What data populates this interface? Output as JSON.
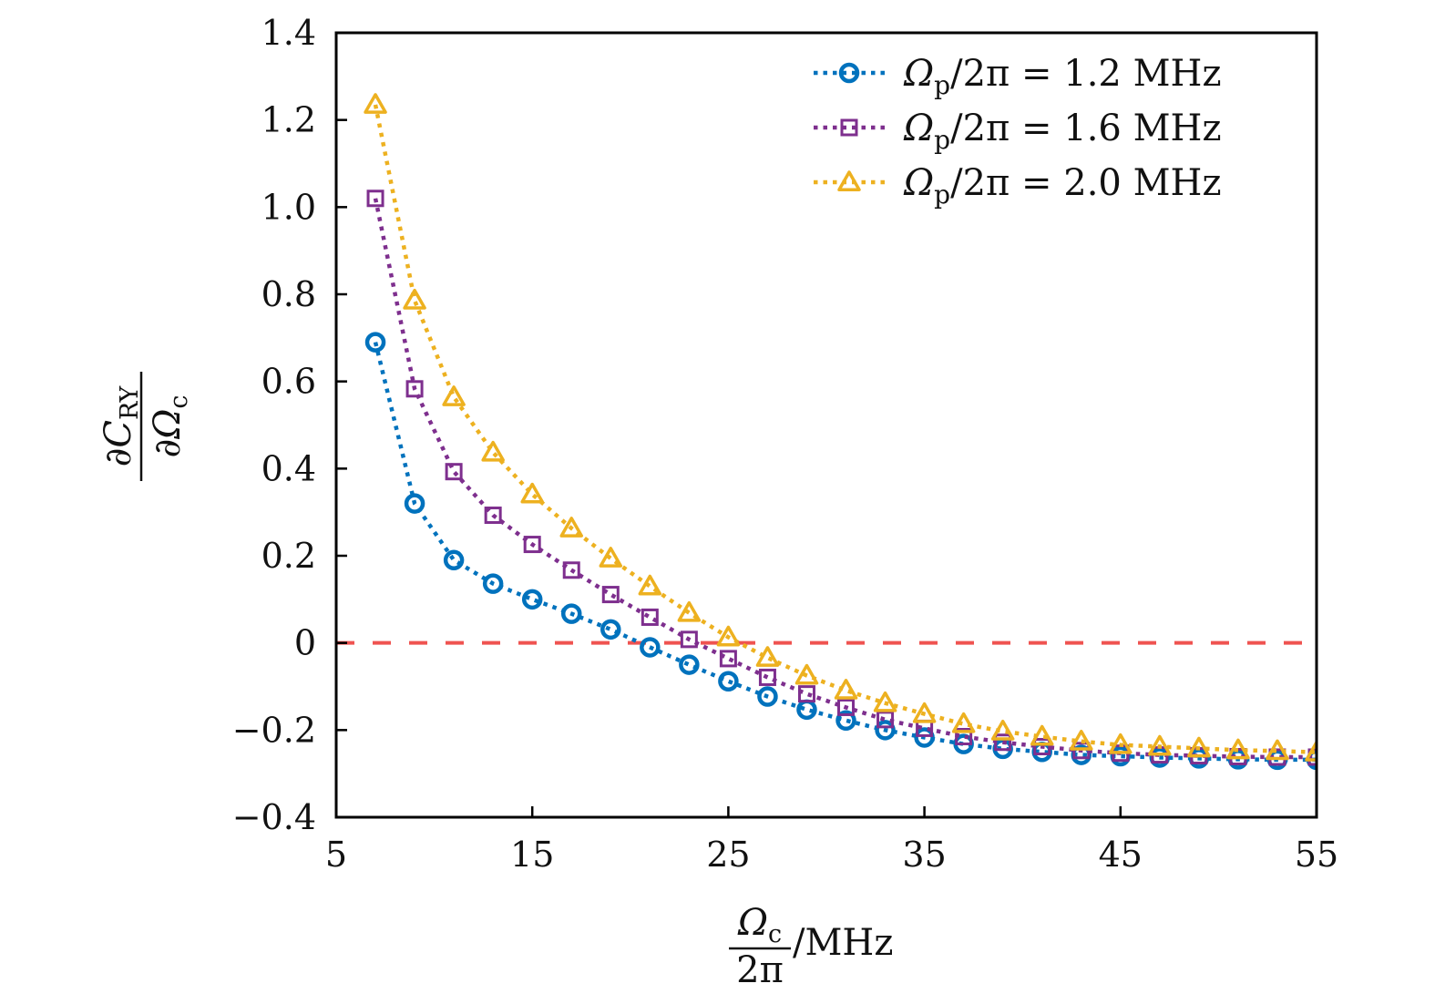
{
  "chart_data": {
    "type": "line",
    "title": "",
    "xlabel": {
      "numerator_symbol": "Ω",
      "numerator_subscript": "c",
      "denominator": "2π",
      "unit": "/MHz"
    },
    "ylabel": {
      "numerator_prefix": "∂",
      "numerator_symbol": "C",
      "numerator_subscript": "RY",
      "denominator_prefix": "∂",
      "denominator_symbol": "Ω",
      "denominator_subscript": "c"
    },
    "xlim": [
      5,
      55
    ],
    "ylim": [
      -0.4,
      1.4
    ],
    "xticks": [
      5,
      15,
      25,
      35,
      45,
      55
    ],
    "xtick_labels": [
      "5",
      "15",
      "25",
      "35",
      "45",
      "55"
    ],
    "yticks": [
      -0.4,
      -0.2,
      0,
      0.2,
      0.4,
      0.6,
      0.8,
      1.0,
      1.2,
      1.4
    ],
    "ytick_labels": [
      "−0.4",
      "−0.2",
      "0",
      "0.2",
      "0.4",
      "0.6",
      "0.8",
      "1.0",
      "1.2",
      "1.4"
    ],
    "grid": false,
    "legend_position": "top-right",
    "reference_line": {
      "y": 0,
      "style": "dashed",
      "color": "#ef5350"
    },
    "x": [
      7,
      9,
      11,
      13,
      15,
      17,
      19,
      21,
      23,
      25,
      27,
      29,
      31,
      33,
      35,
      37,
      39,
      41,
      43,
      45,
      47,
      49,
      51,
      53,
      55
    ],
    "series": [
      {
        "name": "Ωp/2π = 1.2 MHz",
        "legend": {
          "symbol": "Ω",
          "subscript": "p",
          "rest": "/2π = 1.2 MHz"
        },
        "marker": "circle",
        "color": "#0072bd",
        "values": [
          0.69,
          0.32,
          0.19,
          0.136,
          0.1,
          0.067,
          0.031,
          -0.01,
          -0.05,
          -0.088,
          -0.123,
          -0.153,
          -0.178,
          -0.2,
          -0.217,
          -0.232,
          -0.243,
          -0.25,
          -0.257,
          -0.26,
          -0.263,
          -0.265,
          -0.267,
          -0.268,
          -0.268
        ]
      },
      {
        "name": "Ωp/2π = 1.6 MHz",
        "legend": {
          "symbol": "Ω",
          "subscript": "p",
          "rest": "/2π = 1.6 MHz"
        },
        "marker": "square",
        "color": "#7e2f8e",
        "values": [
          1.02,
          0.583,
          0.393,
          0.293,
          0.226,
          0.167,
          0.111,
          0.059,
          0.008,
          -0.036,
          -0.079,
          -0.117,
          -0.148,
          -0.176,
          -0.196,
          -0.215,
          -0.228,
          -0.238,
          -0.247,
          -0.253,
          -0.257,
          -0.259,
          -0.261,
          -0.262,
          -0.262
        ]
      },
      {
        "name": "Ωp/2π = 2.0 MHz",
        "legend": {
          "symbol": "Ω",
          "subscript": "p",
          "rest": "/2π = 2.0 MHz"
        },
        "marker": "triangle",
        "color": "#edb120",
        "values": [
          1.235,
          0.786,
          0.564,
          0.437,
          0.341,
          0.263,
          0.194,
          0.13,
          0.069,
          0.013,
          -0.034,
          -0.075,
          -0.109,
          -0.138,
          -0.163,
          -0.186,
          -0.203,
          -0.215,
          -0.226,
          -0.234,
          -0.238,
          -0.242,
          -0.246,
          -0.248,
          -0.251
        ]
      }
    ]
  }
}
